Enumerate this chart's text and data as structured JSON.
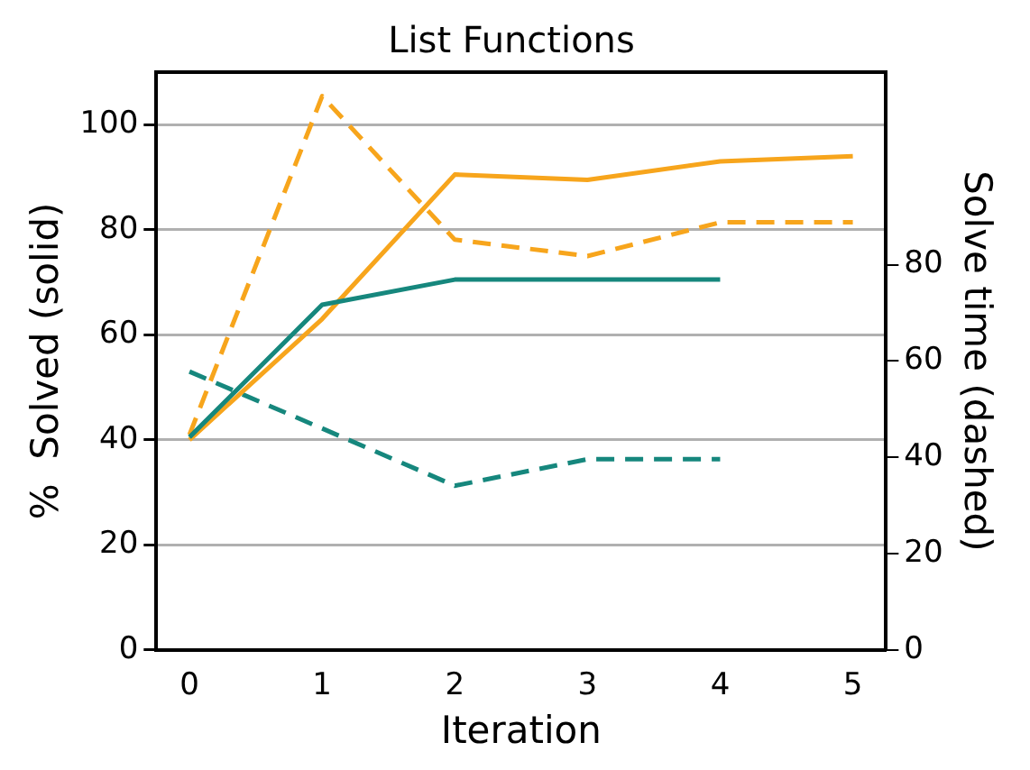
{
  "chart_data": {
    "type": "line",
    "title": "List Functions",
    "xlabel": "Iteration",
    "ylabel": "%  Solved (solid)",
    "y2label": "Solve time (dashed)",
    "x": [
      0,
      1,
      2,
      3,
      4,
      5
    ],
    "xlim": [
      -0.25,
      5.25
    ],
    "xticks": [
      0,
      1,
      2,
      3,
      4,
      5
    ],
    "ylim": [
      0,
      110
    ],
    "yticks": [
      0,
      20,
      40,
      60,
      80,
      100
    ],
    "y2lim": [
      0,
      120
    ],
    "y2ticks": [
      0,
      20,
      40,
      60,
      80
    ],
    "grid": "y",
    "legend": false,
    "marker": "none",
    "series": [
      {
        "color": "#16877d",
        "values": [
          40.5,
          65.7,
          70.5,
          70.5,
          70.5,
          null
        ],
        "line_style": "solid"
      },
      {
        "color": "#f7a51c",
        "values": [
          40,
          63,
          90.5,
          89.5,
          93,
          94
        ],
        "line_style": "solid"
      },
      {
        "color": "#f7a51c",
        "values": [
          44.7,
          115,
          85.2,
          81.8,
          88.8,
          88.8
        ],
        "line_style": "dashed",
        "axis": "y2"
      },
      {
        "color": "#16877d",
        "values": [
          57.8,
          46,
          34.1,
          39.6,
          39.6,
          null
        ],
        "line_style": "dashed",
        "axis": "y2"
      }
    ]
  }
}
